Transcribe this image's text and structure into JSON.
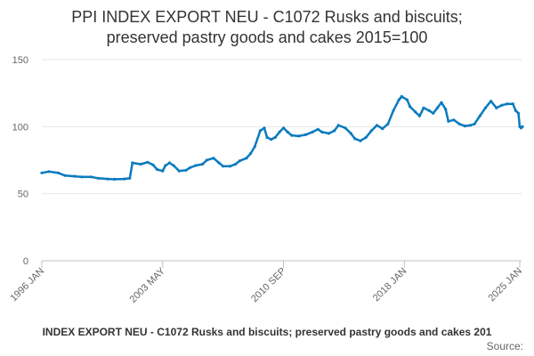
{
  "chart_data": {
    "type": "line",
    "title": [
      "PPI INDEX EXPORT NEU - C1072 Rusks and biscuits;",
      "preserved pastry goods and cakes 2015=100"
    ],
    "xlabel": "",
    "ylabel": "",
    "ylim": [
      0,
      150
    ],
    "yticks": [
      "0",
      "50",
      "100",
      "150"
    ],
    "xticks": [
      "1996 JAN",
      "2003 MAY",
      "2010 SEP",
      "2018 JAN",
      "2025 JAN"
    ],
    "grid": true,
    "legend_position": "bottom",
    "color": "#0a7bbf",
    "series": [
      {
        "name": "PPI INDEX EXPORT NEU - C1072 Rusks and biscuits; preserved pastry goods and cakes 2015=100",
        "points": [
          [
            "1996-01",
            65.5
          ],
          [
            "1996-06",
            66.5
          ],
          [
            "1997-01",
            65.5
          ],
          [
            "1997-06",
            63.5
          ],
          [
            "1998-01",
            63
          ],
          [
            "1998-06",
            62.5
          ],
          [
            "1999-01",
            62.5
          ],
          [
            "1999-06",
            61.5
          ],
          [
            "2000-01",
            61
          ],
          [
            "2000-06",
            60.8
          ],
          [
            "2001-01",
            61
          ],
          [
            "2001-05",
            61.5
          ],
          [
            "2001-07",
            73
          ],
          [
            "2002-01",
            72
          ],
          [
            "2002-06",
            73.5
          ],
          [
            "2002-10",
            71.5
          ],
          [
            "2003-01",
            68
          ],
          [
            "2003-05",
            67
          ],
          [
            "2003-07",
            71
          ],
          [
            "2003-10",
            73
          ],
          [
            "2004-01",
            71
          ],
          [
            "2004-05",
            67
          ],
          [
            "2004-10",
            67.5
          ],
          [
            "2005-01",
            69.5
          ],
          [
            "2005-05",
            71
          ],
          [
            "2005-10",
            72
          ],
          [
            "2006-01",
            75
          ],
          [
            "2006-06",
            76.5
          ],
          [
            "2006-10",
            73
          ],
          [
            "2007-01",
            70.5
          ],
          [
            "2007-06",
            70.5
          ],
          [
            "2007-10",
            72
          ],
          [
            "2008-01",
            74.5
          ],
          [
            "2008-06",
            76.5
          ],
          [
            "2008-09",
            80
          ],
          [
            "2008-12",
            85
          ],
          [
            "2009-04",
            97
          ],
          [
            "2009-07",
            99
          ],
          [
            "2009-09",
            92
          ],
          [
            "2009-12",
            90.5
          ],
          [
            "2010-03",
            92
          ],
          [
            "2010-06",
            96
          ],
          [
            "2010-09",
            99
          ],
          [
            "2010-12",
            96
          ],
          [
            "2011-03",
            93.5
          ],
          [
            "2011-08",
            93
          ],
          [
            "2012-01",
            94
          ],
          [
            "2012-06",
            96
          ],
          [
            "2012-10",
            98
          ],
          [
            "2013-01",
            96
          ],
          [
            "2013-06",
            95
          ],
          [
            "2013-10",
            97
          ],
          [
            "2014-01",
            101
          ],
          [
            "2014-06",
            99
          ],
          [
            "2014-10",
            95
          ],
          [
            "2015-01",
            91
          ],
          [
            "2015-05",
            89.5
          ],
          [
            "2015-09",
            92
          ],
          [
            "2016-01",
            97
          ],
          [
            "2016-05",
            101
          ],
          [
            "2016-09",
            98.5
          ],
          [
            "2017-01",
            102
          ],
          [
            "2017-05",
            112
          ],
          [
            "2017-09",
            120
          ],
          [
            "2017-11",
            122.5
          ],
          [
            "2018-03",
            120
          ],
          [
            "2018-05",
            115
          ],
          [
            "2018-09",
            111
          ],
          [
            "2018-12",
            108
          ],
          [
            "2019-03",
            114
          ],
          [
            "2019-07",
            112
          ],
          [
            "2019-10",
            110
          ],
          [
            "2020-01",
            114
          ],
          [
            "2020-04",
            118
          ],
          [
            "2020-07",
            113
          ],
          [
            "2020-09",
            104
          ],
          [
            "2021-01",
            105
          ],
          [
            "2021-05",
            102
          ],
          [
            "2021-09",
            100.5
          ],
          [
            "2022-01",
            101
          ],
          [
            "2022-04",
            102
          ],
          [
            "2022-08",
            108
          ],
          [
            "2022-12",
            114
          ],
          [
            "2023-04",
            119
          ],
          [
            "2023-08",
            114
          ],
          [
            "2023-12",
            116
          ],
          [
            "2024-04",
            117
          ],
          [
            "2024-08",
            117
          ],
          [
            "2024-10",
            112
          ],
          [
            "2024-12",
            110
          ],
          [
            "2025-01",
            100
          ],
          [
            "2025-02",
            99
          ],
          [
            "2025-03",
            100
          ]
        ]
      }
    ],
    "legend_label": "INDEX EXPORT NEU - C1072 Rusks and biscuits; preserved pastry goods and cakes 201",
    "source_label": "Source:"
  }
}
